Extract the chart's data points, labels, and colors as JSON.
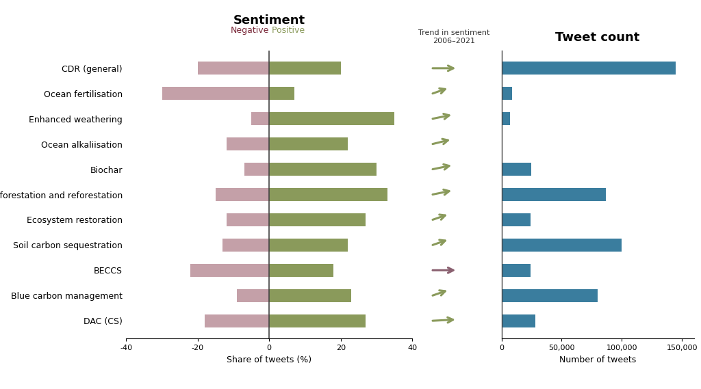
{
  "categories": [
    "CDR (general)",
    "Ocean fertilisation",
    "Enhanced weathering",
    "Ocean alkaliisation",
    "Biochar",
    "Afforestation and reforestation",
    "Ecosystem restoration",
    "Soil carbon sequestration",
    "BECCS",
    "Blue carbon management",
    "DAC (CS)"
  ],
  "negative": [
    -20,
    -30,
    -5,
    -12,
    -7,
    -15,
    -12,
    -13,
    -22,
    -9,
    -18
  ],
  "positive": [
    20,
    7,
    35,
    22,
    30,
    33,
    27,
    22,
    18,
    23,
    27
  ],
  "tweet_counts": [
    145000,
    9000,
    7000,
    0,
    25000,
    87000,
    24000,
    100000,
    24000,
    80000,
    28000
  ],
  "arrow_angles": [
    0,
    50,
    35,
    40,
    35,
    35,
    50,
    50,
    0,
    50,
    10
  ],
  "arrow_colors": [
    "#8a9a5b",
    "#8a9a5b",
    "#8a9a5b",
    "#8a9a5b",
    "#8a9a5b",
    "#8a9a5b",
    "#8a9a5b",
    "#8a9a5b",
    "#8a6070",
    "#8a9a5b",
    "#8a9a5b"
  ],
  "neg_color": "#c4a0a8",
  "pos_color": "#8a9a5b",
  "bar_color": "#3a7d9e",
  "sentiment_title": "Sentiment",
  "tweet_title": "Tweet count",
  "sentiment_xlabel": "Share of tweets (%)",
  "tweet_xlabel": "Number of tweets",
  "trend_label": "Trend in sentiment\n2006–2021",
  "neg_label": "Negative",
  "pos_label": "Positive",
  "xlim_sentiment": [
    -40,
    40
  ],
  "xlim_tweets": [
    0,
    160000
  ],
  "background_color": "#ffffff"
}
